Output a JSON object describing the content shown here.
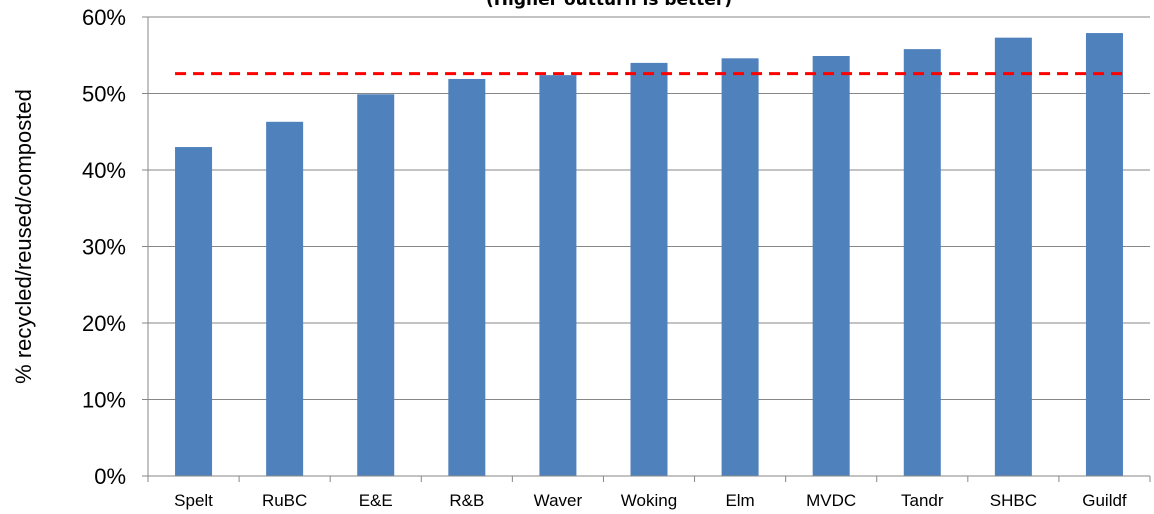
{
  "chart_data": {
    "type": "bar",
    "title": "(Higher outturn is better)",
    "xlabel": "",
    "ylabel": "% recycled/reused/composted",
    "categories": [
      "Spelt",
      "RuBC",
      "E&E",
      "R&B",
      "Waver",
      "Woking",
      "Elm",
      "MVDC",
      "Tandr",
      "SHBC",
      "Guildf"
    ],
    "series": [
      {
        "values": [
          43.0,
          46.3,
          49.9,
          51.9,
          52.4,
          54.0,
          54.6,
          54.9,
          55.8,
          57.3,
          57.9
        ]
      }
    ],
    "reference_line": {
      "value": 52.6,
      "style": "dashed",
      "color": "#ff0000"
    },
    "ylim": [
      0,
      60
    ],
    "yticks": [
      0,
      10,
      20,
      30,
      40,
      50,
      60
    ],
    "ytick_labels": [
      "0%",
      "10%",
      "20%",
      "30%",
      "40%",
      "50%",
      "60%"
    ],
    "grid": true,
    "bar_color": "#4f81bd",
    "grid_color": "#878787"
  }
}
